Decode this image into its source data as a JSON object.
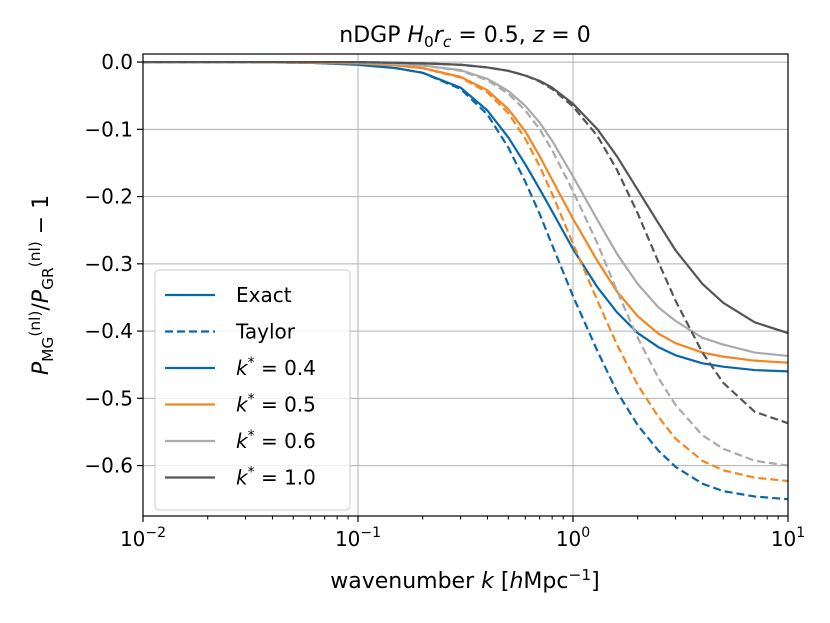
{
  "chart_data": {
    "type": "line",
    "title_parts": [
      {
        "t": "nDGP ",
        "style": "normal"
      },
      {
        "t": "H",
        "style": "italic"
      },
      {
        "t": "0",
        "style": "sub"
      },
      {
        "t": "r",
        "style": "italic"
      },
      {
        "t": "c",
        "style": "sub-italic"
      },
      {
        "t": " = 0.5, ",
        "style": "normal"
      },
      {
        "t": "z",
        "style": "italic"
      },
      {
        "t": " = 0",
        "style": "normal"
      }
    ],
    "xlabel_parts": [
      {
        "t": "wavenumber ",
        "style": "normal"
      },
      {
        "t": "k",
        "style": "italic"
      },
      {
        "t": " [",
        "style": "normal"
      },
      {
        "t": "h",
        "style": "italic"
      },
      {
        "t": "Mpc",
        "style": "normal"
      },
      {
        "t": "−1",
        "style": "sup"
      },
      {
        "t": "]",
        "style": "normal"
      }
    ],
    "ylabel_parts": [
      {
        "t": "P",
        "style": "italic"
      },
      {
        "t": "MG",
        "style": "sub"
      },
      {
        "t": "(nl)",
        "style": "sup"
      },
      {
        "t": "/",
        "style": "normal"
      },
      {
        "t": "P",
        "style": "italic"
      },
      {
        "t": "GR",
        "style": "sub"
      },
      {
        "t": "(nl)",
        "style": "sup"
      },
      {
        "t": " − 1",
        "style": "normal"
      }
    ],
    "xscale": "log",
    "xlim": [
      0.01,
      10
    ],
    "ylim": [
      -0.675,
      0.012
    ],
    "xticks": [
      {
        "value": 0.01,
        "base": "10",
        "exp": "−2"
      },
      {
        "value": 0.1,
        "base": "10",
        "exp": "−1"
      },
      {
        "value": 1,
        "base": "10",
        "exp": "0"
      },
      {
        "value": 10,
        "base": "10",
        "exp": "1"
      }
    ],
    "yticks": [
      {
        "value": 0.0,
        "label": "0.0"
      },
      {
        "value": -0.1,
        "label": "−0.1"
      },
      {
        "value": -0.2,
        "label": "−0.2"
      },
      {
        "value": -0.3,
        "label": "−0.3"
      },
      {
        "value": -0.4,
        "label": "−0.4"
      },
      {
        "value": -0.5,
        "label": "−0.5"
      },
      {
        "value": -0.6,
        "label": "−0.6"
      }
    ],
    "grid": true,
    "legend_position": "lower-left",
    "legend": [
      {
        "parts": [
          {
            "t": "Exact",
            "style": "normal"
          }
        ],
        "color": "#0868a9",
        "dash": "solid"
      },
      {
        "parts": [
          {
            "t": "Taylor",
            "style": "normal"
          }
        ],
        "color": "#0868a9",
        "dash": "dashed"
      },
      {
        "parts": [
          {
            "t": "k",
            "style": "italic"
          },
          {
            "t": "*",
            "style": "sup"
          },
          {
            "t": " = 0.4",
            "style": "normal"
          }
        ],
        "color": "#0868a9",
        "dash": "solid"
      },
      {
        "parts": [
          {
            "t": "k",
            "style": "italic"
          },
          {
            "t": "*",
            "style": "sup"
          },
          {
            "t": " = 0.5",
            "style": "normal"
          }
        ],
        "color": "#f5861f",
        "dash": "solid"
      },
      {
        "parts": [
          {
            "t": "k",
            "style": "italic"
          },
          {
            "t": "*",
            "style": "sup"
          },
          {
            "t": " = 0.6",
            "style": "normal"
          }
        ],
        "color": "#aaaaaa",
        "dash": "solid"
      },
      {
        "parts": [
          {
            "t": "k",
            "style": "italic"
          },
          {
            "t": "*",
            "style": "sup"
          },
          {
            "t": " = 1.0",
            "style": "normal"
          }
        ],
        "color": "#555555",
        "dash": "solid"
      }
    ],
    "series": [
      {
        "name": "k*=0.4 Exact",
        "color": "#0868a9",
        "dash": "solid",
        "x": [
          0.01,
          0.03,
          0.06,
          0.1,
          0.15,
          0.2,
          0.3,
          0.4,
          0.5,
          0.6,
          0.7,
          0.8,
          1.0,
          1.3,
          1.6,
          2.0,
          2.5,
          3.0,
          4.0,
          5.0,
          7.0,
          10.0
        ],
        "y": [
          0.0,
          0.0,
          -0.001,
          -0.004,
          -0.009,
          -0.016,
          -0.038,
          -0.072,
          -0.112,
          -0.152,
          -0.189,
          -0.222,
          -0.278,
          -0.335,
          -0.372,
          -0.403,
          -0.424,
          -0.436,
          -0.448,
          -0.453,
          -0.458,
          -0.46
        ]
      },
      {
        "name": "k*=0.4 Taylor",
        "color": "#0868a9",
        "dash": "dashed",
        "x": [
          0.01,
          0.03,
          0.06,
          0.1,
          0.15,
          0.2,
          0.3,
          0.4,
          0.5,
          0.6,
          0.7,
          0.8,
          1.0,
          1.3,
          1.6,
          2.0,
          2.5,
          3.0,
          4.0,
          5.0,
          7.0,
          10.0
        ],
        "y": [
          0.0,
          0.0,
          -0.001,
          -0.004,
          -0.009,
          -0.016,
          -0.04,
          -0.078,
          -0.127,
          -0.178,
          -0.226,
          -0.272,
          -0.348,
          -0.43,
          -0.49,
          -0.54,
          -0.578,
          -0.602,
          -0.627,
          -0.638,
          -0.646,
          -0.65
        ]
      },
      {
        "name": "k*=0.5 Exact",
        "color": "#f5861f",
        "dash": "solid",
        "x": [
          0.01,
          0.03,
          0.06,
          0.1,
          0.15,
          0.2,
          0.3,
          0.4,
          0.5,
          0.6,
          0.7,
          0.8,
          1.0,
          1.3,
          1.6,
          2.0,
          2.5,
          3.0,
          4.0,
          5.0,
          7.0,
          10.0
        ],
        "y": [
          0.0,
          0.0,
          -0.001,
          -0.002,
          -0.005,
          -0.009,
          -0.022,
          -0.042,
          -0.07,
          -0.103,
          -0.14,
          -0.175,
          -0.233,
          -0.296,
          -0.341,
          -0.378,
          -0.404,
          -0.418,
          -0.432,
          -0.438,
          -0.444,
          -0.447
        ]
      },
      {
        "name": "k*=0.5 Taylor",
        "color": "#f5861f",
        "dash": "dashed",
        "x": [
          0.01,
          0.03,
          0.06,
          0.1,
          0.15,
          0.2,
          0.3,
          0.4,
          0.5,
          0.6,
          0.7,
          0.8,
          1.0,
          1.3,
          1.6,
          2.0,
          2.5,
          3.0,
          4.0,
          5.0,
          7.0,
          10.0
        ],
        "y": [
          0.0,
          0.0,
          -0.001,
          -0.002,
          -0.005,
          -0.009,
          -0.023,
          -0.045,
          -0.076,
          -0.114,
          -0.155,
          -0.196,
          -0.27,
          -0.355,
          -0.42,
          -0.48,
          -0.528,
          -0.56,
          -0.593,
          -0.607,
          -0.618,
          -0.623
        ]
      },
      {
        "name": "k*=0.6 Exact",
        "color": "#aaaaaa",
        "dash": "solid",
        "x": [
          0.01,
          0.03,
          0.06,
          0.1,
          0.15,
          0.2,
          0.3,
          0.4,
          0.5,
          0.6,
          0.7,
          0.8,
          1.0,
          1.3,
          1.6,
          2.0,
          2.5,
          3.0,
          4.0,
          5.0,
          7.0,
          10.0
        ],
        "y": [
          0.0,
          0.0,
          0.0,
          -0.001,
          -0.003,
          -0.005,
          -0.012,
          -0.025,
          -0.043,
          -0.065,
          -0.09,
          -0.117,
          -0.17,
          -0.235,
          -0.285,
          -0.33,
          -0.365,
          -0.385,
          -0.41,
          -0.42,
          -0.432,
          -0.437
        ]
      },
      {
        "name": "k*=0.6 Taylor",
        "color": "#aaaaaa",
        "dash": "dashed",
        "x": [
          0.01,
          0.03,
          0.06,
          0.1,
          0.15,
          0.2,
          0.3,
          0.4,
          0.5,
          0.6,
          0.7,
          0.8,
          1.0,
          1.3,
          1.6,
          2.0,
          2.5,
          3.0,
          4.0,
          5.0,
          7.0,
          10.0
        ],
        "y": [
          0.0,
          0.0,
          0.0,
          -0.001,
          -0.003,
          -0.005,
          -0.013,
          -0.027,
          -0.047,
          -0.072,
          -0.1,
          -0.131,
          -0.192,
          -0.27,
          -0.34,
          -0.41,
          -0.47,
          -0.51,
          -0.555,
          -0.575,
          -0.593,
          -0.6
        ]
      },
      {
        "name": "k*=1.0 Exact",
        "color": "#555555",
        "dash": "solid",
        "x": [
          0.01,
          0.03,
          0.06,
          0.1,
          0.15,
          0.2,
          0.3,
          0.4,
          0.5,
          0.6,
          0.7,
          0.8,
          1.0,
          1.3,
          1.6,
          2.0,
          2.5,
          3.0,
          4.0,
          5.0,
          7.0,
          10.0
        ],
        "y": [
          0.0,
          0.0,
          0.0,
          0.0,
          -0.001,
          -0.002,
          -0.004,
          -0.008,
          -0.013,
          -0.02,
          -0.028,
          -0.038,
          -0.062,
          -0.1,
          -0.14,
          -0.19,
          -0.24,
          -0.28,
          -0.33,
          -0.358,
          -0.387,
          -0.403
        ]
      },
      {
        "name": "k*=1.0 Taylor",
        "color": "#555555",
        "dash": "dashed",
        "x": [
          0.01,
          0.03,
          0.06,
          0.1,
          0.15,
          0.2,
          0.3,
          0.4,
          0.5,
          0.6,
          0.7,
          0.8,
          1.0,
          1.3,
          1.6,
          2.0,
          2.5,
          3.0,
          4.0,
          5.0,
          7.0,
          10.0
        ],
        "y": [
          0.0,
          0.0,
          0.0,
          0.0,
          -0.001,
          -0.002,
          -0.004,
          -0.008,
          -0.013,
          -0.02,
          -0.029,
          -0.04,
          -0.066,
          -0.11,
          -0.16,
          -0.225,
          -0.298,
          -0.355,
          -0.432,
          -0.477,
          -0.52,
          -0.537
        ]
      }
    ]
  }
}
